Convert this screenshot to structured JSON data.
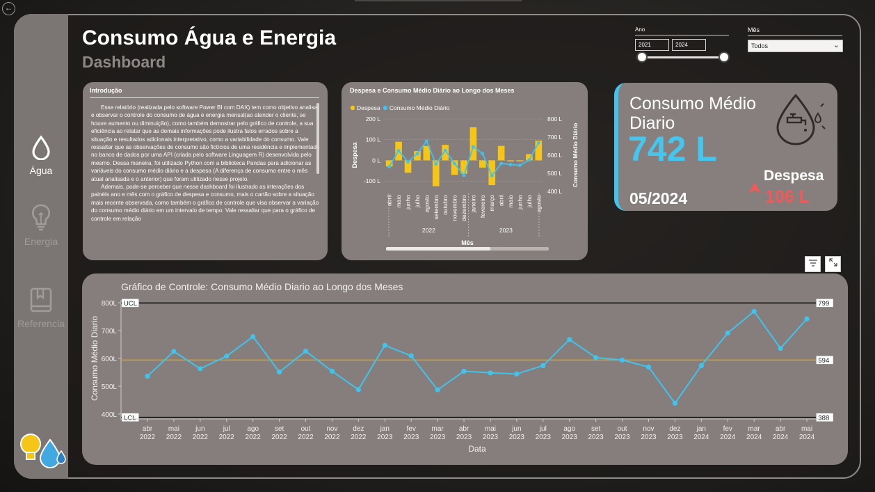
{
  "nav": {
    "items": [
      {
        "label": "Água",
        "icon": "water-drop-icon"
      },
      {
        "label": "Energia",
        "icon": "lightbulb-icon"
      },
      {
        "label": "Referencia",
        "icon": "book-icon"
      }
    ]
  },
  "header": {
    "title": "Consumo Água e Energia",
    "subtitle": "Dashboard"
  },
  "filters": {
    "ano_label": "Ano",
    "ano_start": "2021",
    "ano_end": "2024",
    "mes_label": "Mês",
    "mes_value": "Todos"
  },
  "intro": {
    "title": "Introdução",
    "p1": "Esse relatório (realizada pelo software Power BI com DAX) tem como objetivo analisar e observar o controle do consumo de água e energia mensal(ao atender o cliente, se houve aumento ou diminuição), como também demostrar pelo gráfico de controle, a sua eficiência ao relatar que as demais informações pode ilustra fatos errados sobre a situação e resultados adicionais interpretativo, como a variabilidade do consumo. Vale ressaltar que as observações de consumo são fictícios de uma residência e implementado no banco de dados por uma API (criada pelo software Linguagem R) desenvolvida pelo mesmo. Dessa maneira, foi utilizado Python com a biblioteca Pandas para adicionar as variáveis do consumo médio diário e a despesa (A diferença de consumo entre o mês atual analisada e o anterior) que foram utilizado nesse projeto.",
    "p2": "Ademais, pode-se perceber que nesse dashboard foi ilustrado as interações dos painéis ano e mês com o gráfico de despesa e consumo, mais o cartão sobre a situação mais recente observada, como também o gráfico de controle que visa observar a variação do consumo médio diário em um intervalo de tempo. Vale ressaltar que para o gráfico de controle em relação"
  },
  "kpi": {
    "title": "Consumo Médio Diario",
    "value": "742 L",
    "date": "05/2024",
    "despesa_label": "Despesa",
    "despesa_value": "106 L",
    "icon": "water-tap-drop-icon",
    "accent": "#41c3ec",
    "despesa_color": "#f05a5a"
  },
  "buttons": {
    "filter_icon": "filter-icon",
    "focus_icon": "focus-mode-icon"
  },
  "chart_data": [
    {
      "type": "bar+line",
      "title": "Despesa e Consumo Médio Diário ao Longo dos Meses",
      "legend": [
        "Despesa",
        "Consumo Médio Diário"
      ],
      "legend_placement": "top-left",
      "xlabel": "Mês",
      "ylabel_left": "Despesa",
      "ylabel_right": "Consumo Médio Diário",
      "y_left_ticks": [
        "200 L",
        "100 L",
        "0 L",
        "-100 L"
      ],
      "y_right_ticks": [
        "800 L",
        "700 L",
        "600 L",
        "500 L",
        "400 L"
      ],
      "ylim_left": [
        -150,
        200
      ],
      "ylim_right": [
        400,
        800
      ],
      "groups": [
        "2022",
        "2023"
      ],
      "categories": [
        "abril",
        "maio",
        "junho",
        "julho",
        "agosto",
        "setembro",
        "outubro",
        "novembro",
        "dezembro",
        "janeiro",
        "fevereiro",
        "março",
        "abril",
        "maio",
        "junho",
        "julho",
        "agosto"
      ],
      "series": [
        {
          "name": "Despesa",
          "color": "#f5c518",
          "values": [
            -30,
            90,
            -60,
            45,
            70,
            -125,
            75,
            -70,
            -65,
            160,
            -35,
            -120,
            70,
            -5,
            -5,
            30,
            95
          ]
        },
        {
          "name": "Consumo Médio Diário",
          "color": "#41c3ec",
          "values": [
            536,
            625,
            563,
            608,
            678,
            551,
            626,
            554,
            488,
            647,
            609,
            487,
            554,
            548,
            544,
            574,
            668
          ]
        }
      ]
    },
    {
      "type": "line",
      "title": "Gráfico de Controle: Consumo Médio Diario ao Longo dos Meses",
      "xlabel": "Data",
      "ylabel": "Consumo Médio Diario",
      "y_ticks": [
        "800L",
        "700L",
        "600L",
        "500L",
        "400L"
      ],
      "ylim": [
        400,
        800
      ],
      "ucl": 799,
      "lcl": 388,
      "mean": 594,
      "ucl_label": "UCL",
      "lcl_label": "LCL",
      "categories": [
        "abr 2022",
        "mai 2022",
        "jun 2022",
        "jul 2022",
        "ago 2022",
        "set 2022",
        "out 2022",
        "nov 2022",
        "dez 2022",
        "jan 2023",
        "fev 2023",
        "mar 2023",
        "abr 2023",
        "mai 2023",
        "jun 2023",
        "jul 2023",
        "ago 2023",
        "set 2023",
        "out 2023",
        "nov 2023",
        "dez 2023",
        "jan 2024",
        "fev 2024",
        "mar 2024",
        "abr 2024",
        "mai 2024"
      ],
      "series": [
        {
          "name": "Consumo Médio Diario",
          "color": "#41c3ec",
          "values": [
            536,
            625,
            563,
            608,
            678,
            551,
            626,
            554,
            488,
            647,
            609,
            487,
            554,
            548,
            544,
            574,
            668,
            603,
            594,
            569,
            439,
            574,
            691,
            769,
            636,
            742
          ]
        }
      ],
      "mean_color": "#d7a520"
    }
  ]
}
